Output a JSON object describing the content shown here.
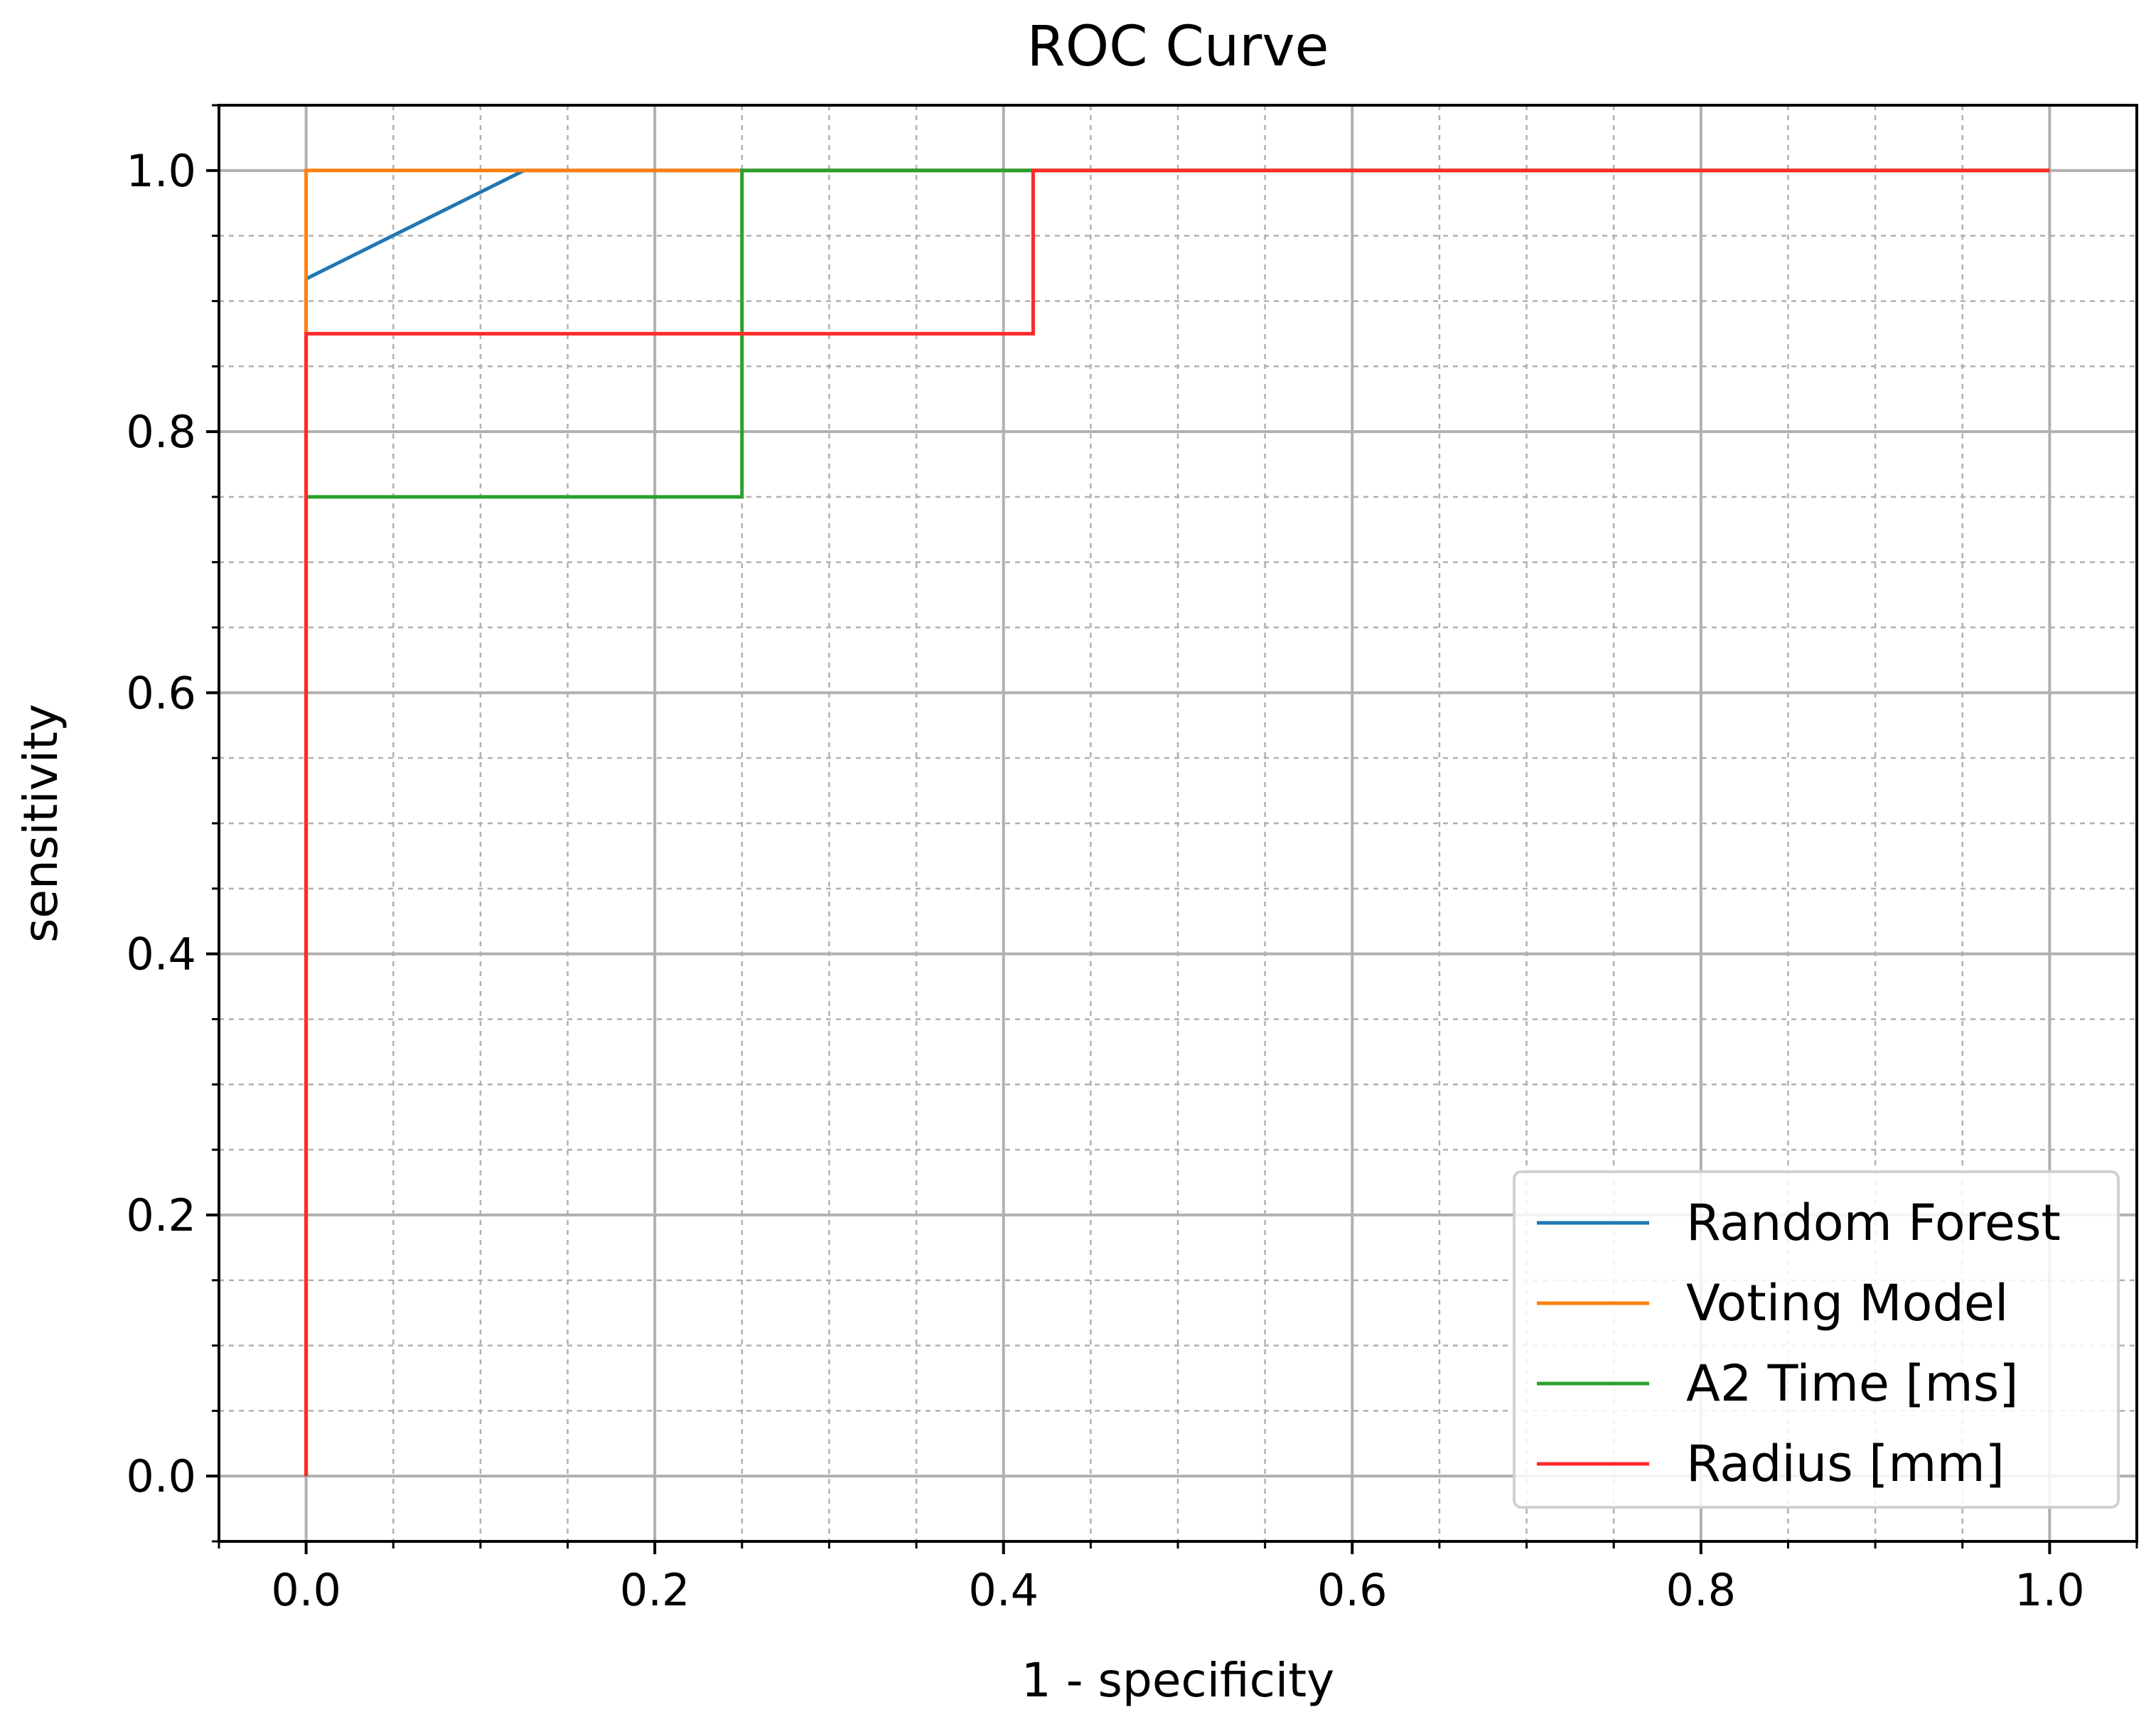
{
  "chart_data": {
    "type": "line",
    "title": "ROC Curve",
    "xlabel": "1 - specificity",
    "ylabel": "sensitivity",
    "xlim": [
      -0.05,
      1.05
    ],
    "ylim": [
      -0.05,
      1.05
    ],
    "x_ticks": [
      0.0,
      0.2,
      0.4,
      0.6,
      0.8,
      1.0
    ],
    "x_tick_labels": [
      "0.0",
      "0.2",
      "0.4",
      "0.6",
      "0.8",
      "1.0"
    ],
    "y_ticks": [
      0.0,
      0.2,
      0.4,
      0.6,
      0.8,
      1.0
    ],
    "y_tick_labels": [
      "0.0",
      "0.2",
      "0.4",
      "0.6",
      "0.8",
      "1.0"
    ],
    "x_minor_step": 0.05,
    "y_minor_step": 0.05,
    "grid": true,
    "legend_position": "lower-right",
    "series": [
      {
        "name": "Random Forest",
        "color": "#1f77b4",
        "x": [
          0.0,
          0.0,
          0.0,
          0.125,
          1.0
        ],
        "y": [
          0.0,
          0.875,
          0.917,
          1.0,
          1.0
        ]
      },
      {
        "name": "Voting Model",
        "color": "#ff7f0e",
        "x": [
          0.0,
          0.0,
          0.0,
          0.25,
          1.0
        ],
        "y": [
          0.0,
          0.917,
          1.0,
          1.0,
          1.0
        ]
      },
      {
        "name": "A2 Time [ms]",
        "color": "#2ca02c",
        "x": [
          0.0,
          0.0,
          0.25,
          0.25,
          0.417,
          1.0
        ],
        "y": [
          0.0,
          0.75,
          0.75,
          1.0,
          1.0,
          1.0
        ]
      },
      {
        "name": "Radius [mm]",
        "color": "#ff2a2a",
        "x": [
          0.0,
          0.0,
          0.417,
          0.417,
          1.0
        ],
        "y": [
          0.0,
          0.875,
          0.875,
          1.0,
          1.0
        ]
      }
    ]
  }
}
